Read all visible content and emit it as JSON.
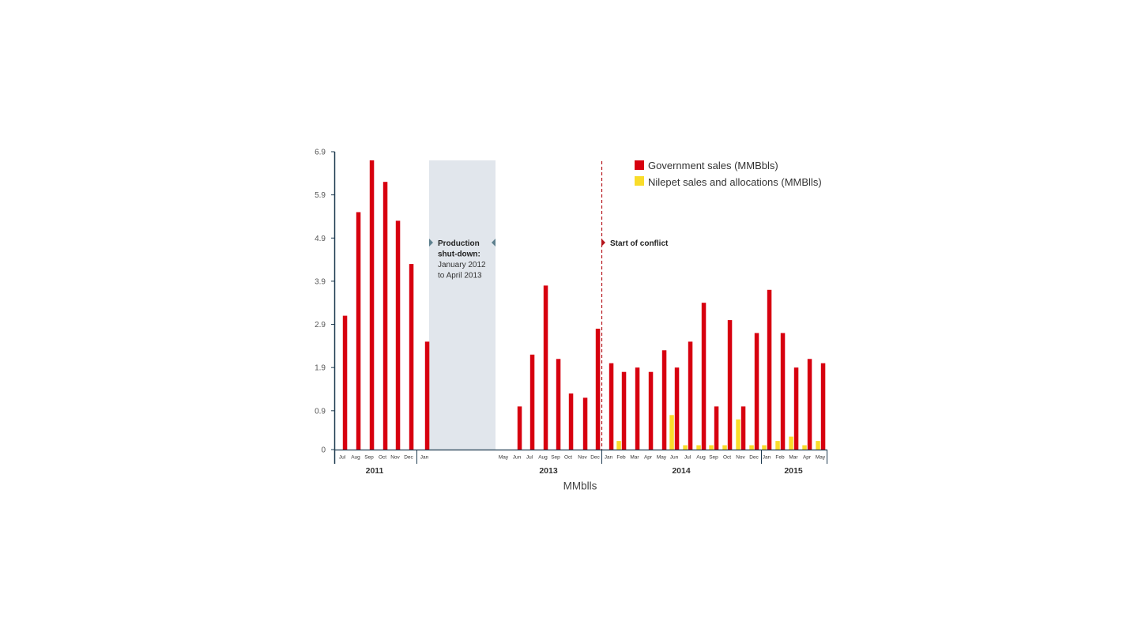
{
  "colors": {
    "government": "#d7000f",
    "nilepet": "#f9dc2a",
    "shutdown": "#e1e6ec",
    "axis": "#1e3b50",
    "conflict": "#b5141b",
    "shutdown_marker": "#5e808e"
  },
  "chart_data": {
    "type": "bar",
    "title": "",
    "xlabel": "MMblls",
    "ylabel": "",
    "ylim": [
      0,
      6.9
    ],
    "yticks": [
      "0",
      "0.9",
      "1.9",
      "2.9",
      "3.9",
      "4.9",
      "5.9",
      "6.9"
    ],
    "categories": [
      "Jul",
      "Aug",
      "Sep",
      "Oct",
      "Nov",
      "Dec",
      "Jan",
      "May",
      "Jun",
      "Jul",
      "Aug",
      "Sep",
      "Oct",
      "Nov",
      "Dec",
      "Jan",
      "Feb",
      "Mar",
      "Apr",
      "May",
      "Jun",
      "Jul",
      "Aug",
      "Sep",
      "Oct",
      "Nov",
      "Dec",
      "Jan",
      "Feb",
      "Mar",
      "Apr",
      "May"
    ],
    "years": [
      {
        "label": "2011",
        "from": 0,
        "to": 6
      },
      {
        "label": "2013",
        "from": 7,
        "to": 14
      },
      {
        "label": "2014",
        "from": 15,
        "to": 26
      },
      {
        "label": "2015",
        "from": 27,
        "to": 31
      }
    ],
    "series": [
      {
        "name": "Government sales (MMBbls)",
        "values": [
          3.1,
          5.5,
          6.7,
          6.2,
          5.3,
          4.3,
          2.5,
          null,
          1.0,
          2.2,
          3.8,
          2.1,
          1.3,
          1.2,
          2.8,
          2.0,
          1.8,
          1.9,
          1.8,
          2.3,
          1.9,
          2.5,
          3.4,
          1.0,
          3.0,
          1.0,
          2.7,
          3.7,
          2.7,
          1.9,
          2.1,
          2.0
        ]
      },
      {
        "name": "Nilepet sales and allocations (MMBlls)",
        "values": [
          null,
          null,
          null,
          null,
          null,
          null,
          null,
          null,
          null,
          null,
          null,
          null,
          null,
          null,
          null,
          null,
          0.2,
          null,
          null,
          null,
          0.8,
          0.1,
          0.1,
          0.1,
          0.1,
          0.7,
          0.1,
          0.1,
          0.2,
          0.3,
          0.1,
          0.2
        ]
      }
    ],
    "legend_position": "top-right",
    "grid": false,
    "annotations": {
      "shutdown_title": "Production shut-down:",
      "shutdown_title_line1": "Production",
      "shutdown_title_line2": "shut-down:",
      "shutdown_line3": "January 2012",
      "shutdown_line4": "to April 2013",
      "conflict": "Start of conflict"
    }
  }
}
